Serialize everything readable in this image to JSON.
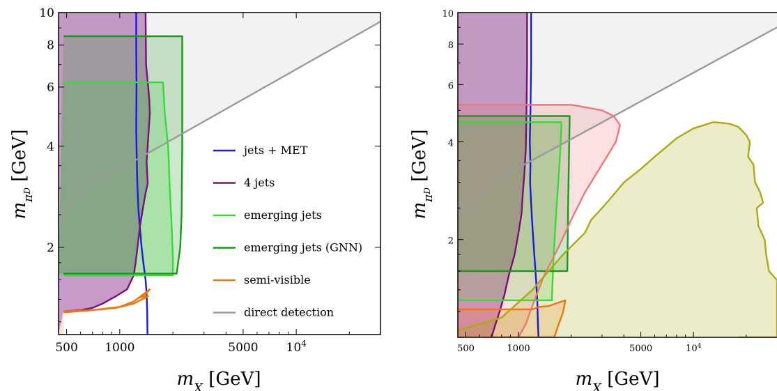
{
  "chart_data": [
    {
      "type": "line",
      "panel": "left",
      "xlabel": "m_X [GeV]",
      "ylabel": "m_{π_D} [GeV]",
      "xscale": "log",
      "yscale": "log",
      "xlim": [
        450,
        30000
      ],
      "ylim": [
        1.1,
        10
      ],
      "xticks": [
        "500",
        "1000",
        "5000",
        "10^4"
      ],
      "yticks": [
        "2",
        "4",
        "6",
        "8",
        "10"
      ],
      "grid": false,
      "legend_position": "center-right",
      "legend": [
        {
          "name": "jets + MET",
          "color": "#1a1adf"
        },
        {
          "name": "4 jets",
          "color": "#7a0f7a"
        },
        {
          "name": "emerging jets",
          "color": "#33dd33"
        },
        {
          "name": "emerging jets (GNN)",
          "color": "#1a9a1a"
        },
        {
          "name": "semi-visible",
          "color": "#ee7711"
        },
        {
          "name": "direct detection",
          "color": "#9a9a9a"
        }
      ],
      "series": [
        {
          "name": "jets + MET",
          "color": "#1a1adf",
          "x": [
            1240,
            1240,
            1245,
            1240,
            1250,
            1260,
            1275,
            1300,
            1330,
            1360,
            1400,
            1420,
            1430,
            1435
          ],
          "y": [
            10,
            8,
            6,
            4.5,
            3.5,
            3.0,
            2.6,
            2.3,
            2.0,
            1.8,
            1.6,
            1.45,
            1.3,
            1.1
          ]
        },
        {
          "name": "4 jets",
          "color": "#7a0f7a",
          "x": [
            1400,
            1410,
            1450,
            1470,
            1480,
            1460,
            1440,
            1420,
            1440,
            1400,
            1350,
            1300,
            1260,
            1230,
            1200,
            1100,
            950,
            800,
            700,
            600,
            480
          ],
          "y": [
            10,
            7,
            6,
            5.5,
            5,
            4.5,
            4,
            3.6,
            3.1,
            2.9,
            2.6,
            2.3,
            2.0,
            1.8,
            1.65,
            1.5,
            1.43,
            1.36,
            1.32,
            1.3,
            1.29
          ]
        },
        {
          "name": "emerging jets",
          "color": "#33dd33",
          "x": [
            480,
            1700,
            1760,
            1800,
            1880,
            1920,
            1970,
            2000,
            2000,
            480
          ],
          "y": [
            6.2,
            6.2,
            6.2,
            5.0,
            4.0,
            3.0,
            2.3,
            1.85,
            1.65,
            1.65
          ]
        },
        {
          "name": "emerging jets (GNN)",
          "color": "#1a9a1a",
          "x": [
            480,
            2250,
            2260,
            2260,
            2240,
            2200,
            2100,
            480
          ],
          "y": [
            8.5,
            8.5,
            8.5,
            4.0,
            2.5,
            2.0,
            1.67,
            1.67
          ]
        },
        {
          "name": "semi-visible",
          "color": "#ee7711",
          "x": [
            480,
            700,
            1000,
            1200,
            1480,
            1400,
            1300,
            1450,
            1200,
            950,
            700,
            480
          ],
          "y": [
            1.28,
            1.3,
            1.33,
            1.38,
            1.5,
            1.45,
            1.42,
            1.43,
            1.36,
            1.32,
            1.3,
            1.29
          ]
        },
        {
          "name": "direct detection",
          "color": "#9a9a9a",
          "x": [
            480,
            600,
            700,
            800,
            30000
          ],
          "y": [
            2.5,
            2.9,
            3.1,
            3.2,
            9.4
          ]
        }
      ]
    },
    {
      "type": "line",
      "panel": "right",
      "xlabel": "m_X [GeV]",
      "ylabel": "m_{π_D} [GeV]",
      "xscale": "log",
      "yscale": "log",
      "xlim": [
        450,
        30000
      ],
      "ylim": [
        1.0,
        10
      ],
      "xticks": [
        "500",
        "1000",
        "5000",
        "10^4"
      ],
      "yticks": [
        "2",
        "4",
        "6",
        "8",
        "10"
      ],
      "grid": false,
      "series": [
        {
          "name": "jets + MET",
          "color": "#1a1adf",
          "x": [
            1180,
            1180,
            1170,
            1160,
            1170,
            1165,
            1180,
            1200,
            1230,
            1260,
            1280,
            1290,
            1300
          ],
          "y": [
            10,
            7,
            5,
            4,
            3.4,
            3.0,
            2.6,
            2.2,
            1.8,
            1.5,
            1.3,
            1.1,
            1.0
          ]
        },
        {
          "name": "4 jets",
          "color": "#7a0f7a",
          "x": [
            1120,
            1120,
            1110,
            1100,
            1080,
            1060,
            1040,
            1000,
            950,
            880,
            830,
            780,
            740,
            700
          ],
          "y": [
            10,
            7,
            5,
            3.8,
            3.2,
            2.8,
            2.4,
            2.1,
            1.8,
            1.55,
            1.35,
            1.2,
            1.1,
            1.0
          ]
        },
        {
          "name": "emerging jets",
          "color": "#33dd33",
          "x": [
            450,
            1750,
            1760,
            1720,
            1640,
            1580,
            1550,
            450
          ],
          "y": [
            4.6,
            4.6,
            4.5,
            3.5,
            2.4,
            1.7,
            1.3,
            1.3
          ]
        },
        {
          "name": "emerging jets (GNN)",
          "color": "#1a9a1a",
          "x": [
            450,
            1950,
            1960,
            1940,
            1920,
            1900,
            450
          ],
          "y": [
            4.8,
            4.8,
            4.8,
            3.5,
            2.5,
            1.6,
            1.6
          ]
        },
        {
          "name": "semi-visible",
          "color": "#ee7711",
          "x": [
            450,
            1200,
            1300,
            1500,
            1700,
            1850,
            1800,
            1700,
            1600,
            1500,
            450
          ],
          "y": [
            1.22,
            1.22,
            1.24,
            1.25,
            1.28,
            1.3,
            1.2,
            1.1,
            1.0,
            1.0,
            1.0
          ]
        },
        {
          "name": "direct detection",
          "color": "#9a9a9a",
          "x": [
            450,
            500,
            650,
            700,
            30000
          ],
          "y": [
            2.4,
            2.5,
            2.9,
            3.0,
            9.0
          ]
        },
        {
          "name": "",
          "color": "#ee7777",
          "x": [
            450,
            2000,
            3000,
            3500,
            3800,
            3600,
            3000,
            2400,
            2000,
            1700,
            1400,
            1200,
            1100,
            1000
          ],
          "y": [
            5.2,
            5.2,
            5.0,
            4.8,
            4.5,
            4.0,
            3.4,
            2.8,
            2.3,
            1.9,
            1.55,
            1.25,
            1.1,
            1.0
          ]
        },
        {
          "name": "",
          "color": "#aaaa11",
          "x": [
            450,
            800,
            1200,
            1800,
            2400,
            2600,
            3000,
            3400,
            4000,
            5000,
            6000,
            8000,
            10000,
            13000,
            16000,
            18000,
            20000,
            21000,
            20500,
            22000,
            22500,
            24000,
            25000,
            23000,
            23500,
            25500,
            26000,
            27000,
            30000,
            30000,
            18000
          ],
          "y": [
            1.05,
            1.15,
            1.4,
            1.8,
            2.1,
            2.3,
            2.5,
            2.7,
            3.0,
            3.3,
            3.6,
            4.1,
            4.4,
            4.6,
            4.55,
            4.45,
            4.2,
            4.0,
            3.6,
            3.4,
            3.0,
            2.8,
            2.6,
            2.5,
            2.2,
            2.0,
            1.8,
            1.6,
            1.5,
            1.0,
            1.0
          ]
        }
      ]
    }
  ]
}
